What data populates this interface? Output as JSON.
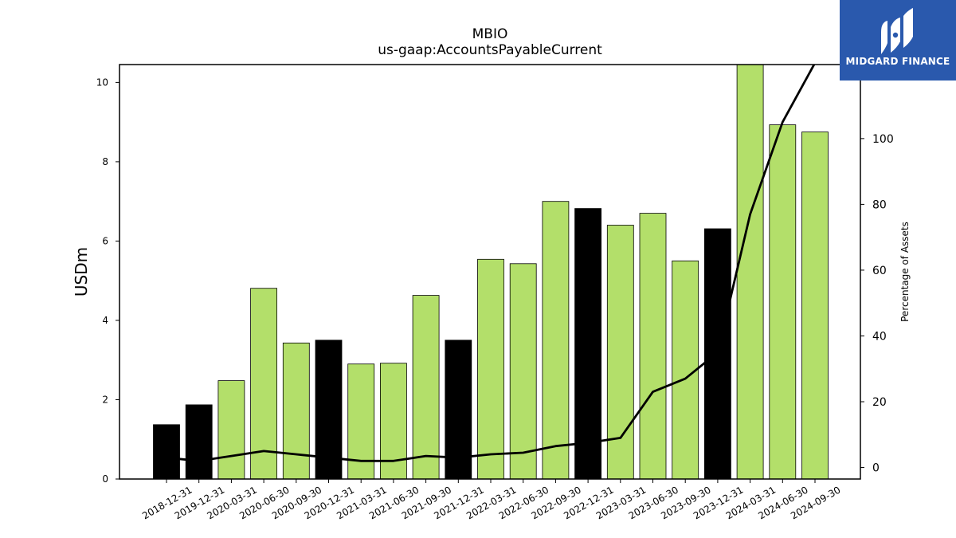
{
  "chart_data": {
    "type": "bar",
    "title": "MBIO",
    "subtitle": "us-gaap:AccountsPayableCurrent",
    "ylabel": "USDm",
    "y2label": "Percentage of Assets",
    "ylim": [
      0,
      10.45
    ],
    "y2lim": [
      -3.5,
      122.5
    ],
    "yticks": [
      "0",
      "2",
      "4",
      "6",
      "8",
      "10"
    ],
    "y2ticks": [
      "0",
      "20",
      "40",
      "60",
      "80",
      "100"
    ],
    "categories": [
      "2018-12-31",
      "2019-12-31",
      "2020-03-31",
      "2020-06-30",
      "2020-09-30",
      "2020-12-31",
      "2021-03-31",
      "2021-06-30",
      "2021-09-30",
      "2021-12-31",
      "2022-03-31",
      "2022-06-30",
      "2022-09-30",
      "2022-12-31",
      "2023-03-31",
      "2023-06-30",
      "2023-09-30",
      "2023-12-31",
      "2024-03-31",
      "2024-06-30",
      "2024-09-30"
    ],
    "values": [
      1.37,
      1.87,
      2.48,
      4.81,
      3.43,
      3.5,
      2.9,
      2.92,
      4.63,
      3.5,
      5.54,
      5.43,
      7.0,
      6.82,
      6.4,
      6.7,
      5.5,
      6.31,
      10.5,
      8.93,
      8.75
    ],
    "annual": [
      true,
      true,
      false,
      false,
      false,
      true,
      false,
      false,
      false,
      true,
      false,
      false,
      false,
      true,
      false,
      false,
      false,
      true,
      false,
      false,
      false
    ],
    "series": [
      {
        "name": "",
        "values": [
          3.0,
          2.0,
          3.5,
          5.0,
          4.0,
          3.0,
          2.0,
          2.0,
          3.5,
          3.0,
          4.0,
          4.5,
          6.5,
          7.5,
          9.0,
          23.0,
          27.0,
          35.0,
          77.0,
          105.0,
          123.0
        ]
      }
    ],
    "colors": {
      "quarterly": "#b3df6a",
      "annual": "#000000",
      "line": "#000000"
    },
    "grid": false
  },
  "logo": {
    "text": "MIDGARD FINANCE"
  }
}
